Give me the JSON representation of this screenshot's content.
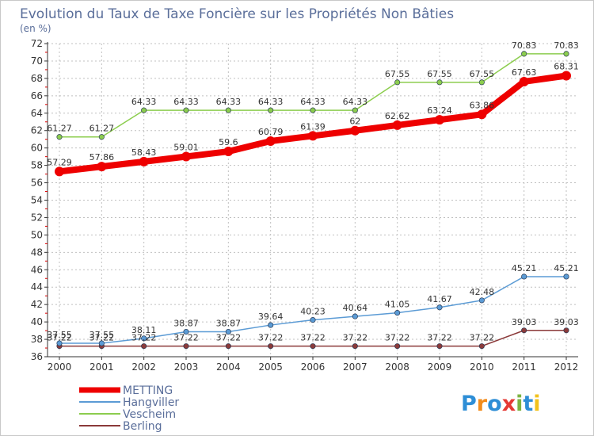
{
  "chart_data": {
    "type": "line",
    "title": "Evolution du Taux de Taxe Foncière sur les Propriétés Non Bâties",
    "unit_label": "(en %)",
    "x": [
      "2000",
      "2001",
      "2002",
      "2003",
      "2004",
      "2005",
      "2006",
      "2007",
      "2008",
      "2009",
      "2010",
      "2011",
      "2012"
    ],
    "ylim": [
      36,
      72
    ],
    "yticks": [
      36,
      38,
      40,
      42,
      44,
      46,
      48,
      50,
      52,
      54,
      56,
      58,
      60,
      62,
      64,
      66,
      68,
      70,
      72
    ],
    "series": [
      {
        "name": "Vescheim",
        "color": "#8ccd4e",
        "values": [
          61.27,
          61.27,
          64.33,
          64.33,
          64.33,
          64.33,
          64.33,
          64.33,
          67.55,
          67.55,
          67.55,
          70.83,
          70.83
        ],
        "labels": [
          "61.27",
          "61.27",
          "64.33",
          "64.33",
          "64.33",
          "64.33",
          "64.33",
          "64.33",
          "67.55",
          "67.55",
          "67.55",
          "70.83",
          "70.83"
        ]
      },
      {
        "name": "Berling",
        "color": "#8b3a3a",
        "values": [
          37.22,
          37.22,
          37.22,
          37.22,
          37.22,
          37.22,
          37.22,
          37.22,
          37.22,
          37.22,
          37.22,
          39.03,
          39.03
        ],
        "labels": [
          "37.22",
          "37.22",
          "37.22",
          "37.22",
          "37.22",
          "37.22",
          "37.22",
          "37.22",
          "37.22",
          "37.22",
          "37.22",
          "39.03",
          "39.03"
        ]
      },
      {
        "name": "Hangviller",
        "color": "#5b9bd5",
        "values": [
          37.55,
          37.55,
          38.11,
          38.87,
          38.87,
          39.64,
          40.23,
          40.64,
          41.05,
          41.67,
          42.48,
          45.21,
          45.21
        ],
        "labels": [
          "37.55",
          "37.55",
          "38.11",
          "38.87",
          "38.87",
          "39.64",
          "40.23",
          "40.64",
          "41.05",
          "41.67",
          "42.48",
          "45.21",
          "45.21"
        ]
      },
      {
        "name": "METTING",
        "color": "#ee0000",
        "values": [
          57.29,
          57.86,
          58.43,
          59.01,
          59.6,
          60.79,
          61.39,
          62,
          62.62,
          63.24,
          63.86,
          67.63,
          68.31
        ],
        "labels": [
          "57.29",
          "57.86",
          "58.43",
          "59.01",
          "59.6",
          "60.79",
          "61.39",
          "62",
          "62.62",
          "63.24",
          "63.86",
          "67.63",
          "68.31"
        ]
      }
    ],
    "legend": [
      "METTING",
      "Hangviller",
      "Vescheim",
      "Berling"
    ],
    "legend_position": "bottom-left"
  },
  "logo": {
    "text": "Proxiti"
  },
  "colors": {
    "title": "#5a6e9a",
    "grid": "#c0c0c0",
    "axis": "#333333"
  }
}
